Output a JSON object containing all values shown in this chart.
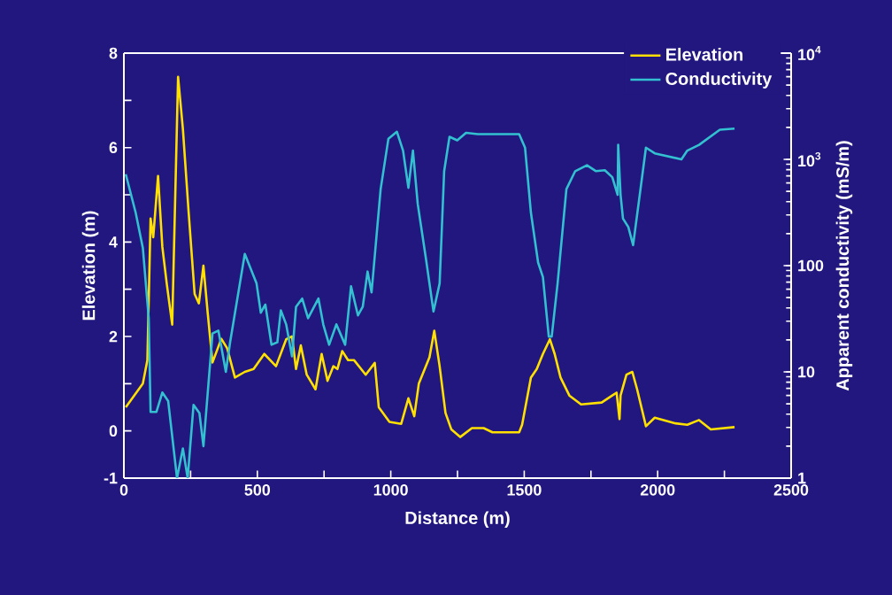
{
  "chart_data": {
    "type": "line",
    "xlabel": "Distance (m)",
    "ylabel": "Elevation (m)",
    "y2label": "Apparent conductivity (mS/m)",
    "xlim": [
      0,
      2500
    ],
    "xticks": [
      0,
      {
        "value": 250,
        "label": null
      },
      500,
      {
        "value": 750,
        "label": null
      },
      1000,
      {
        "value": 1250,
        "label": null
      },
      1500,
      {
        "value": 1750,
        "label": null
      },
      2000,
      {
        "value": 2250,
        "label": null
      },
      2500
    ],
    "ylim": [
      -1,
      8
    ],
    "yticks": [
      -1,
      0,
      {
        "value": 1,
        "label": null
      },
      2,
      {
        "value": 3,
        "label": null
      },
      4,
      {
        "value": 5,
        "label": null
      },
      6,
      {
        "value": 7,
        "label": null
      },
      8
    ],
    "y2lim": [
      1,
      10000
    ],
    "y2ticks": [
      1,
      10,
      100,
      {
        "value": 1000,
        "label": "10$^{3}$"
      },
      {
        "value": 10000,
        "label": "10$^{4}$"
      }
    ],
    "log": "y2",
    "legend": "top right",
    "grid": false,
    "series": [
      {
        "name": "Elevation",
        "color": "#ffe000",
        "x": [
          7,
          71,
          88,
          100,
          110,
          128,
          144,
          161,
          181,
          203,
          221,
          243,
          265,
          281,
          298,
          314,
          332,
          365,
          387,
          416,
          453,
          486,
          526,
          570,
          608,
          630,
          645,
          663,
          685,
          718,
          741,
          763,
          785,
          800,
          818,
          840,
          862,
          906,
          940,
          955,
          995,
          1039,
          1066,
          1088,
          1105,
          1145,
          1163,
          1183,
          1205,
          1227,
          1260,
          1304,
          1348,
          1381,
          1481,
          1492,
          1525,
          1547,
          1570,
          1596,
          1614,
          1636,
          1669,
          1713,
          1790,
          1830,
          1846,
          1857,
          1861,
          1883,
          1905,
          1923,
          1956,
          1989,
          2067,
          2111,
          2155,
          2199,
          2288
        ],
        "values": [
          0.5,
          1.0,
          1.5,
          4.5,
          4.1,
          5.4,
          3.9,
          3.1,
          2.25,
          7.5,
          6.4,
          4.6,
          2.9,
          2.7,
          3.5,
          2.5,
          1.45,
          1.95,
          1.75,
          1.13,
          1.25,
          1.31,
          1.63,
          1.37,
          1.94,
          2.0,
          1.31,
          1.81,
          1.19,
          0.88,
          1.63,
          1.06,
          1.37,
          1.31,
          1.69,
          1.5,
          1.5,
          1.19,
          1.44,
          0.5,
          0.19,
          0.15,
          0.69,
          0.31,
          1.0,
          1.56,
          2.12,
          1.37,
          0.38,
          0.03,
          -0.13,
          0.06,
          0.06,
          -0.03,
          -0.03,
          0.13,
          1.13,
          1.31,
          1.63,
          1.94,
          1.63,
          1.13,
          0.75,
          0.56,
          0.6,
          0.75,
          0.81,
          0.25,
          0.75,
          1.19,
          1.25,
          0.88,
          0.1,
          0.28,
          0.16,
          0.13,
          0.23,
          0.03,
          0.08
        ]
      },
      {
        "name": "Conductivity",
        "color": "#33c0d0",
        "axis": "y2",
        "x": [
          7,
          44,
          71,
          93,
          100,
          122,
          144,
          166,
          199,
          221,
          239,
          261,
          283,
          298,
          332,
          354,
          382,
          398,
          453,
          497,
          513,
          530,
          553,
          575,
          588,
          608,
          630,
          645,
          668,
          690,
          729,
          747,
          769,
          796,
          829,
          851,
          877,
          895,
          913,
          928,
          962,
          991,
          1023,
          1046,
          1066,
          1083,
          1101,
          1132,
          1160,
          1183,
          1200,
          1220,
          1249,
          1282,
          1326,
          1481,
          1503,
          1525,
          1552,
          1570,
          1592,
          1603,
          1625,
          1658,
          1691,
          1735,
          1769,
          1802,
          1830,
          1850,
          1852,
          1861,
          1870,
          1890,
          1908,
          1930,
          1956,
          1989,
          2089,
          2111,
          2155,
          2233,
          2288
        ],
        "values": [
          725,
          316,
          147,
          32,
          4.2,
          4.2,
          6.4,
          5.3,
          1,
          1.9,
          1,
          4.9,
          4.1,
          2.0,
          23,
          24.5,
          10,
          19,
          129,
          68,
          36,
          43,
          18,
          19,
          38,
          28,
          14,
          41,
          49,
          32,
          49,
          28,
          18,
          28,
          18,
          64,
          34,
          41,
          88,
          56,
          525,
          1560,
          1820,
          1210,
          540,
          1210,
          380,
          115,
          37,
          68,
          775,
          1630,
          1510,
          1780,
          1730,
          1730,
          1290,
          316,
          107,
          78,
          21.5,
          21.5,
          68,
          525,
          775,
          880,
          775,
          790,
          680,
          464,
          1370,
          464,
          277,
          231,
          156,
          410,
          1290,
          1140,
          1000,
          1210,
          1370,
          1900,
          1950
        ]
      }
    ]
  }
}
